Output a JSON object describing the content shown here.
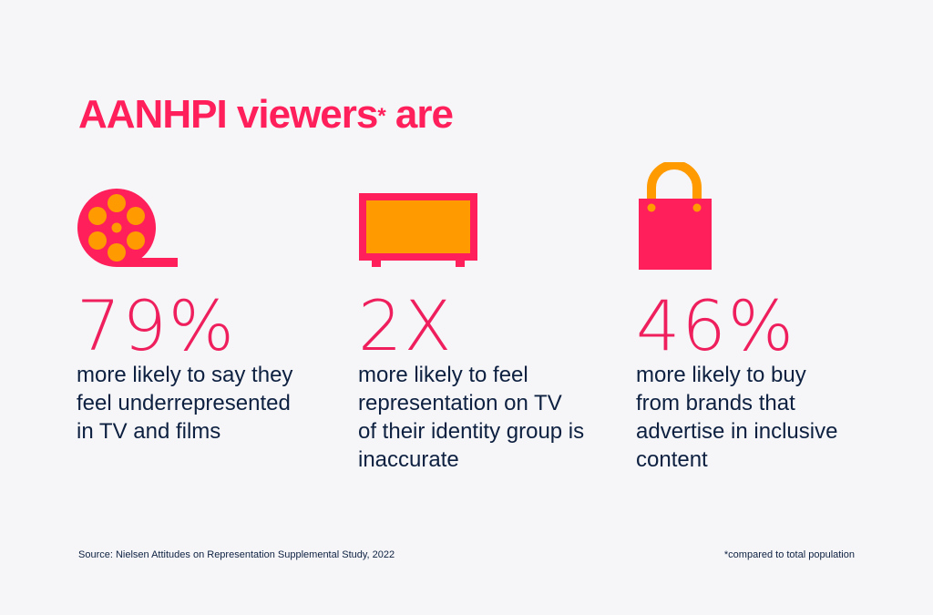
{
  "heading": {
    "text": "AANHPI viewers",
    "asterisk": "*",
    "suffix": " are"
  },
  "colors": {
    "accent": "#ff1f5a",
    "secondary": "#ff9a00",
    "text": "#0d2040",
    "background": "#f6f6f9"
  },
  "stats": [
    {
      "icon": "film-reel-icon",
      "value": "79%",
      "description": "more likely to say they feel underrepresented in TV and films"
    },
    {
      "icon": "television-icon",
      "value": "2X",
      "description": "more likely to feel representation on TV of their identity group is inaccurate"
    },
    {
      "icon": "shopping-bag-icon",
      "value": "46%",
      "description": "more likely to buy from brands that advertise in inclusive content"
    }
  ],
  "footer": {
    "source": "Source: Nielsen Attitudes on Representation Supplemental Study, 2022",
    "note": "*compared to total population"
  }
}
